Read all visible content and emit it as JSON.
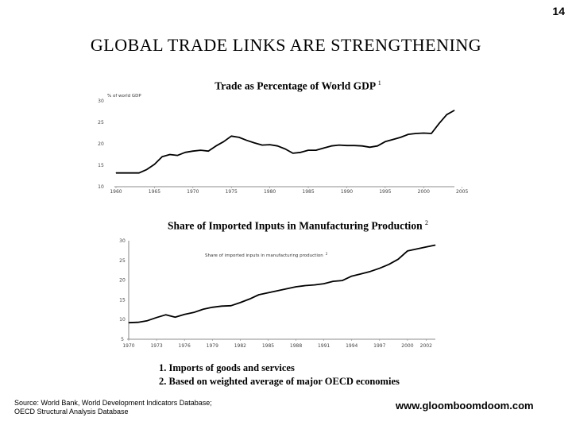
{
  "page_number": "14",
  "title": "GLOBAL  TRADE  LINKS  ARE  STRENGTHENING",
  "footnotes": [
    "1. Imports of goods and services",
    "2. Based on weighted average of major OECD economies"
  ],
  "source_lines": [
    "Source: World Bank, World Development Indicators Database;",
    "OECD Structural Analysis Database"
  ],
  "website": "www.gloomboomdoom.com",
  "chart_data": [
    {
      "type": "line",
      "title": "Trade as Percentage of World GDP",
      "title_note": "1",
      "ylabel": "% of world GDP",
      "ylim": [
        10,
        30
      ],
      "yticks": [
        "10",
        "15",
        "20",
        "25",
        "30"
      ],
      "xlim": [
        1960,
        2004
      ],
      "xticks": [
        "1960",
        "1965",
        "1970",
        "1975",
        "1980",
        "1985",
        "1990",
        "1995",
        "2000",
        "2005"
      ],
      "color": "#000000",
      "series": [
        {
          "x": [
            1960,
            1962,
            1963,
            1964,
            1965,
            1966,
            1967,
            1968,
            1969,
            1970,
            1971,
            1972,
            1973,
            1974,
            1975,
            1976,
            1977,
            1978,
            1979,
            1980,
            1981,
            1982,
            1983,
            1984,
            1985,
            1986,
            1987,
            1988,
            1989,
            1990,
            1991,
            1992,
            1993,
            1994,
            1995,
            1996,
            1997,
            1998,
            1999,
            2000,
            2001,
            2002,
            2003,
            2004
          ],
          "y": [
            13.2,
            13.2,
            13.2,
            14.0,
            15.2,
            17.0,
            17.5,
            17.3,
            18.0,
            18.3,
            18.5,
            18.3,
            19.5,
            20.5,
            21.8,
            21.5,
            20.8,
            20.2,
            19.7,
            19.8,
            19.5,
            18.8,
            17.8,
            18.0,
            18.5,
            18.5,
            19.0,
            19.5,
            19.7,
            19.6,
            19.6,
            19.5,
            19.2,
            19.5,
            20.5,
            21.0,
            21.5,
            22.2,
            22.4,
            22.5,
            22.4,
            24.7,
            26.8,
            27.8
          ]
        }
      ]
    },
    {
      "type": "line",
      "title": "Share of Imported Inputs in Manufacturing Production",
      "title_note": "2",
      "legend_text": "Share of imported inputs in manufacturing production",
      "legend_note": "2",
      "ylim": [
        5,
        30
      ],
      "yticks": [
        "5",
        "10",
        "15",
        "20",
        "25",
        "30"
      ],
      "xlim": [
        1970,
        2003
      ],
      "xticks": [
        "1970",
        "1973",
        "1976",
        "1979",
        "1982",
        "1985",
        "1988",
        "1991",
        "1994",
        "1997",
        "2000",
        "2002"
      ],
      "color": "#000000",
      "series": [
        {
          "x": [
            1970,
            1971,
            1972,
            1973,
            1974,
            1975,
            1976,
            1977,
            1978,
            1979,
            1980,
            1981,
            1982,
            1983,
            1984,
            1985,
            1986,
            1987,
            1988,
            1989,
            1990,
            1991,
            1992,
            1993,
            1994,
            1995,
            1996,
            1997,
            1998,
            1999,
            2000,
            2001,
            2002,
            2003
          ],
          "y": [
            9.2,
            9.3,
            9.7,
            10.5,
            11.2,
            10.6,
            11.3,
            11.8,
            12.6,
            13.1,
            13.4,
            13.5,
            14.3,
            15.2,
            16.3,
            16.8,
            17.3,
            17.8,
            18.3,
            18.6,
            18.8,
            19.1,
            19.7,
            19.9,
            21.0,
            21.6,
            22.2,
            23.0,
            24.0,
            25.3,
            27.4,
            27.9,
            28.4,
            28.9
          ]
        }
      ]
    }
  ]
}
